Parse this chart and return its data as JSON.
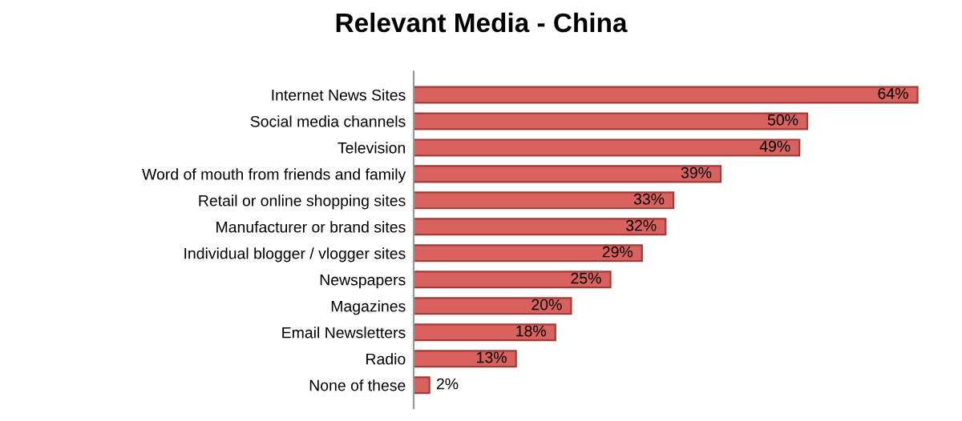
{
  "chart_data": {
    "type": "bar",
    "orientation": "horizontal",
    "title": "Relevant Media - China",
    "categories": [
      "Internet News Sites",
      "Social media channels",
      "Television",
      "Word of mouth from friends and family",
      "Retail or online shopping sites",
      "Manufacturer or brand sites",
      "Individual blogger / vlogger sites",
      "Newspapers",
      "Magazines",
      "Email Newsletters",
      "Radio",
      "None of these"
    ],
    "values": [
      64,
      50,
      49,
      39,
      33,
      32,
      29,
      25,
      20,
      18,
      13,
      2
    ],
    "value_labels": [
      "64%",
      "50%",
      "49%",
      "39%",
      "33%",
      "32%",
      "29%",
      "25%",
      "20%",
      "18%",
      "13%",
      "2%"
    ],
    "color": "#d9625e",
    "grid": false,
    "legend": false
  }
}
